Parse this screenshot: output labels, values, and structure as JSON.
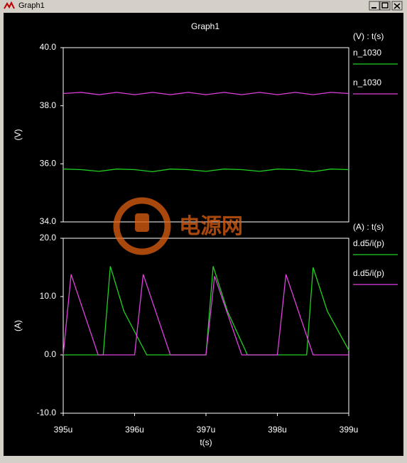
{
  "window": {
    "title": "Graph1"
  },
  "watermark": {
    "text": "电源网"
  },
  "chart_data": [
    {
      "type": "line",
      "title": "Graph1",
      "ylabel": "(V)",
      "legend_title": "(V) : t(s)",
      "xlim": [
        395,
        399
      ],
      "ylim": [
        34,
        40
      ],
      "yticks": [
        {
          "value": 34,
          "label": "34.0"
        },
        {
          "value": 36,
          "label": "36.0"
        },
        {
          "value": 38,
          "label": "38.0"
        },
        {
          "value": 40,
          "label": "40.0"
        }
      ],
      "series": [
        {
          "name": "n_1030",
          "color": "#20d020",
          "x": [
            395,
            395.25,
            395.5,
            395.75,
            396,
            396.25,
            396.5,
            396.75,
            397,
            397.25,
            397.5,
            397.75,
            398,
            398.25,
            398.5,
            398.75,
            399
          ],
          "values": [
            35.82,
            35.8,
            35.74,
            35.82,
            35.8,
            35.73,
            35.82,
            35.8,
            35.74,
            35.82,
            35.8,
            35.74,
            35.82,
            35.8,
            35.73,
            35.82,
            35.8
          ]
        },
        {
          "name": "n_1030",
          "color": "#e040e0",
          "x": [
            395,
            395.25,
            395.5,
            395.75,
            396,
            396.25,
            396.5,
            396.75,
            397,
            397.25,
            397.5,
            397.75,
            398,
            398.25,
            398.5,
            398.75,
            399
          ],
          "values": [
            38.42,
            38.46,
            38.38,
            38.46,
            38.38,
            38.46,
            38.38,
            38.46,
            38.38,
            38.46,
            38.38,
            38.46,
            38.38,
            38.46,
            38.38,
            38.46,
            38.42
          ]
        }
      ]
    },
    {
      "type": "line",
      "ylabel": "(A)",
      "xlabel": "t(s)",
      "legend_title": "(A) : t(s)",
      "xlim": [
        395,
        399
      ],
      "ylim": [
        -10,
        20
      ],
      "xticks": [
        {
          "value": 395,
          "label": "395u"
        },
        {
          "value": 396,
          "label": "396u"
        },
        {
          "value": 397,
          "label": "397u"
        },
        {
          "value": 398,
          "label": "398u"
        },
        {
          "value": 399,
          "label": "399u"
        }
      ],
      "yticks": [
        {
          "value": -10,
          "label": "-10.0"
        },
        {
          "value": 0,
          "label": "0.0"
        },
        {
          "value": 10,
          "label": "10.0"
        },
        {
          "value": 20,
          "label": "20.0"
        }
      ],
      "series": [
        {
          "name": "d.d5/i(p)",
          "color": "#20d020",
          "x": [
            395,
            395.56,
            395.66,
            395.85,
            396.17,
            397.0,
            397.1,
            397.3,
            397.58,
            398.41,
            398.5,
            398.7,
            399
          ],
          "values": [
            0,
            0,
            15.2,
            7.5,
            0,
            0,
            15.2,
            7.5,
            0,
            0,
            15.0,
            7.5,
            0.8
          ]
        },
        {
          "name": "d.d5/i(p)",
          "color": "#e040e0",
          "x": [
            395,
            395.11,
            395.49,
            396.0,
            396.12,
            396.5,
            397.0,
            397.12,
            397.5,
            398.0,
            398.12,
            398.5,
            399
          ],
          "values": [
            0,
            13.8,
            0,
            0,
            13.8,
            0,
            0,
            13.5,
            0,
            0,
            13.8,
            0,
            0
          ]
        }
      ]
    }
  ]
}
